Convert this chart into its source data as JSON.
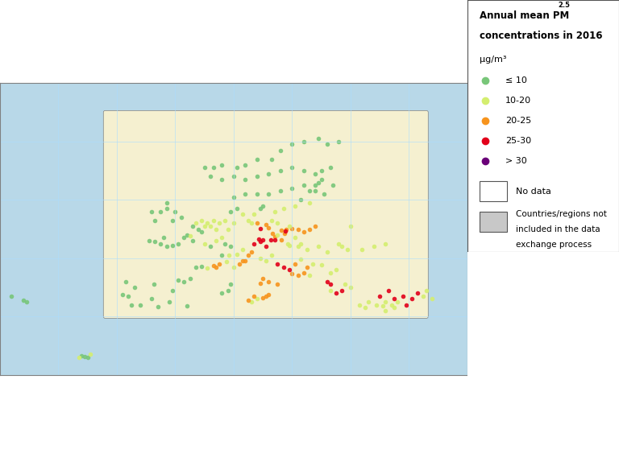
{
  "title": "Annual mean PM₂.₅\nconcentrations in 2016",
  "title_line1": "Annual mean PM",
  "title_pm_sub": "2.5",
  "title_line2": "concentrations in 2016",
  "unit": "μg/m³",
  "legend_items": [
    {
      "label": "≤ 10",
      "color": "#78c679"
    },
    {
      "label": "10-20",
      "color": "#d4ee6f"
    },
    {
      "label": "20-25",
      "color": "#f7941d"
    },
    {
      "label": "25-30",
      "color": "#e2001a"
    },
    {
      "label": "> 30",
      "color": "#6a0078"
    }
  ],
  "ocean_color": "#b8d8e8",
  "land_no_data_color": "#f5f0d0",
  "land_excluded_color": "#c8c8c8",
  "border_color": "#808080",
  "grid_color": "#aaddff",
  "inset_border_color": "#333333",
  "background_color": "#ffffff",
  "map_background": "#b8d8e8",
  "pm_stations": [
    {
      "lon": 14.5,
      "lat": 50.1,
      "cat": 4
    },
    {
      "lon": 16.6,
      "lat": 49.2,
      "cat": 3
    },
    {
      "lon": 17.0,
      "lat": 48.7,
      "cat": 3
    },
    {
      "lon": 18.2,
      "lat": 49.8,
      "cat": 3
    },
    {
      "lon": 19.0,
      "lat": 50.0,
      "cat": 3
    },
    {
      "lon": 20.0,
      "lat": 50.1,
      "cat": 3
    },
    {
      "lon": 21.0,
      "lat": 50.0,
      "cat": 3
    },
    {
      "lon": 14.0,
      "lat": 51.0,
      "cat": 3
    },
    {
      "lon": 15.5,
      "lat": 50.7,
      "cat": 3
    },
    {
      "lon": 16.0,
      "lat": 50.2,
      "cat": 3
    },
    {
      "lon": 18.7,
      "lat": 49.3,
      "cat": 3
    },
    {
      "lon": 17.5,
      "lat": 49.0,
      "cat": 2
    },
    {
      "lon": 18.9,
      "lat": 49.7,
      "cat": 4
    },
    {
      "lon": 14.3,
      "lat": 48.3,
      "cat": 4
    },
    {
      "lon": 15.0,
      "lat": 48.1,
      "cat": 4
    },
    {
      "lon": 16.4,
      "lat": 48.2,
      "cat": 4
    },
    {
      "lon": 17.1,
      "lat": 48.1,
      "cat": 4
    },
    {
      "lon": 18.1,
      "lat": 48.2,
      "cat": 3
    },
    {
      "lon": 19.2,
      "lat": 47.5,
      "cat": 2
    },
    {
      "lon": 19.5,
      "lat": 47.2,
      "cat": 2
    },
    {
      "lon": 21.0,
      "lat": 47.0,
      "cat": 2
    },
    {
      "lon": 21.5,
      "lat": 47.5,
      "cat": 2
    },
    {
      "lon": 20.5,
      "lat": 48.5,
      "cat": 2
    },
    {
      "lon": 22.0,
      "lat": 49.5,
      "cat": 3
    },
    {
      "lon": 23.0,
      "lat": 50.0,
      "cat": 3
    },
    {
      "lon": 24.0,
      "lat": 50.5,
      "cat": 3
    },
    {
      "lon": 14.5,
      "lat": 47.8,
      "cat": 4
    },
    {
      "lon": 13.5,
      "lat": 47.5,
      "cat": 4
    },
    {
      "lon": 15.5,
      "lat": 47.0,
      "cat": 4
    },
    {
      "lon": 13.0,
      "lat": 46.0,
      "cat": 3
    },
    {
      "lon": 12.0,
      "lat": 44.5,
      "cat": 3
    },
    {
      "lon": 11.0,
      "lat": 44.0,
      "cat": 3
    },
    {
      "lon": 12.5,
      "lat": 45.5,
      "cat": 3
    },
    {
      "lon": 11.5,
      "lat": 46.5,
      "cat": 2
    },
    {
      "lon": 10.5,
      "lat": 45.7,
      "cat": 2
    },
    {
      "lon": 8.0,
      "lat": 45.5,
      "cat": 1
    },
    {
      "lon": 7.5,
      "lat": 44.0,
      "cat": 3
    },
    {
      "lon": 7.0,
      "lat": 43.5,
      "cat": 3
    },
    {
      "lon": 6.5,
      "lat": 43.7,
      "cat": 3
    },
    {
      "lon": 5.5,
      "lat": 43.3,
      "cat": 2
    },
    {
      "lon": 4.5,
      "lat": 43.6,
      "cat": 1
    },
    {
      "lon": 3.5,
      "lat": 43.4,
      "cat": 1
    },
    {
      "lon": 2.5,
      "lat": 41.5,
      "cat": 1
    },
    {
      "lon": 1.5,
      "lat": 41.0,
      "cat": 1
    },
    {
      "lon": 0.5,
      "lat": 41.3,
      "cat": 1
    },
    {
      "lon": -0.5,
      "lat": 39.5,
      "cat": 1
    },
    {
      "lon": -1.0,
      "lat": 37.5,
      "cat": 1
    },
    {
      "lon": -3.7,
      "lat": 40.5,
      "cat": 1
    },
    {
      "lon": -4.0,
      "lat": 38.0,
      "cat": 1
    },
    {
      "lon": -6.0,
      "lat": 37.0,
      "cat": 1
    },
    {
      "lon": -8.0,
      "lat": 38.5,
      "cat": 1
    },
    {
      "lon": -9.0,
      "lat": 38.7,
      "cat": 1
    },
    {
      "lon": -8.5,
      "lat": 41.0,
      "cat": 1
    },
    {
      "lon": -7.0,
      "lat": 40.0,
      "cat": 1
    },
    {
      "lon": -7.5,
      "lat": 37.0,
      "cat": 1
    },
    {
      "lon": -3.0,
      "lat": 36.7,
      "cat": 1
    },
    {
      "lon": 2.0,
      "lat": 36.8,
      "cat": 1
    },
    {
      "lon": 13.0,
      "lat": 37.5,
      "cat": 2
    },
    {
      "lon": 14.0,
      "lat": 38.0,
      "cat": 2
    },
    {
      "lon": 15.0,
      "lat": 38.2,
      "cat": 3
    },
    {
      "lon": 15.5,
      "lat": 38.5,
      "cat": 3
    },
    {
      "lon": 16.0,
      "lat": 38.8,
      "cat": 3
    },
    {
      "lon": 13.5,
      "lat": 38.5,
      "cat": 3
    },
    {
      "lon": 12.5,
      "lat": 37.8,
      "cat": 3
    },
    {
      "lon": 11.5,
      "lat": 44.5,
      "cat": 3
    },
    {
      "lon": 10.0,
      "lat": 43.5,
      "cat": 2
    },
    {
      "lon": 8.8,
      "lat": 44.4,
      "cat": 2
    },
    {
      "lon": 9.2,
      "lat": 45.5,
      "cat": 2
    },
    {
      "lon": 8.5,
      "lat": 47.5,
      "cat": 1
    },
    {
      "lon": 9.5,
      "lat": 47.0,
      "cat": 1
    },
    {
      "lon": 7.0,
      "lat": 48.0,
      "cat": 2
    },
    {
      "lon": 6.0,
      "lat": 47.0,
      "cat": 1
    },
    {
      "lon": 5.0,
      "lat": 47.5,
      "cat": 2
    },
    {
      "lon": 4.0,
      "lat": 50.0,
      "cat": 1
    },
    {
      "lon": 3.0,
      "lat": 50.5,
      "cat": 1
    },
    {
      "lon": 2.0,
      "lat": 49.0,
      "cat": 1
    },
    {
      "lon": 1.5,
      "lat": 48.5,
      "cat": 1
    },
    {
      "lon": 0.5,
      "lat": 47.5,
      "cat": 1
    },
    {
      "lon": -0.5,
      "lat": 47.2,
      "cat": 1
    },
    {
      "lon": -1.5,
      "lat": 47.0,
      "cat": 1
    },
    {
      "lon": -2.5,
      "lat": 47.5,
      "cat": 1
    },
    {
      "lon": -3.5,
      "lat": 47.8,
      "cat": 1
    },
    {
      "lon": -4.5,
      "lat": 48.0,
      "cat": 1
    },
    {
      "lon": -2.0,
      "lat": 48.5,
      "cat": 1
    },
    {
      "lon": 3.5,
      "lat": 51.0,
      "cat": 2
    },
    {
      "lon": 4.5,
      "lat": 51.5,
      "cat": 2
    },
    {
      "lon": 5.5,
      "lat": 51.0,
      "cat": 2
    },
    {
      "lon": 6.5,
      "lat": 51.5,
      "cat": 2
    },
    {
      "lon": 7.5,
      "lat": 51.0,
      "cat": 2
    },
    {
      "lon": 8.5,
      "lat": 51.5,
      "cat": 2
    },
    {
      "lon": 9.5,
      "lat": 53.0,
      "cat": 1
    },
    {
      "lon": 10.5,
      "lat": 53.5,
      "cat": 1
    },
    {
      "lon": 11.5,
      "lat": 52.5,
      "cat": 2
    },
    {
      "lon": 12.5,
      "lat": 51.5,
      "cat": 2
    },
    {
      "lon": 13.5,
      "lat": 52.5,
      "cat": 2
    },
    {
      "lon": 13.0,
      "lat": 51.0,
      "cat": 2
    },
    {
      "lon": 10.0,
      "lat": 51.0,
      "cat": 2
    },
    {
      "lon": 9.0,
      "lat": 50.0,
      "cat": 2
    },
    {
      "lon": 8.0,
      "lat": 48.5,
      "cat": 2
    },
    {
      "lon": 7.0,
      "lat": 50.0,
      "cat": 2
    },
    {
      "lon": 6.0,
      "lat": 50.5,
      "cat": 2
    },
    {
      "lon": 5.0,
      "lat": 50.5,
      "cat": 2
    },
    {
      "lon": 4.5,
      "lat": 49.5,
      "cat": 1
    },
    {
      "lon": 3.0,
      "lat": 48.0,
      "cat": 1
    },
    {
      "lon": 2.5,
      "lat": 48.8,
      "cat": 2
    },
    {
      "lon": -1.5,
      "lat": 53.5,
      "cat": 1
    },
    {
      "lon": -2.5,
      "lat": 53.0,
      "cat": 1
    },
    {
      "lon": -3.5,
      "lat": 51.5,
      "cat": 1
    },
    {
      "lon": -4.0,
      "lat": 53.0,
      "cat": 1
    },
    {
      "lon": -0.5,
      "lat": 51.5,
      "cat": 1
    },
    {
      "lon": 1.0,
      "lat": 52.0,
      "cat": 1
    },
    {
      "lon": -1.5,
      "lat": 54.5,
      "cat": 1
    },
    {
      "lon": 0.0,
      "lat": 53.0,
      "cat": 1
    },
    {
      "lon": 10.0,
      "lat": 55.5,
      "cat": 1
    },
    {
      "lon": 12.0,
      "lat": 56.0,
      "cat": 1
    },
    {
      "lon": 14.0,
      "lat": 56.0,
      "cat": 1
    },
    {
      "lon": 16.0,
      "lat": 56.0,
      "cat": 1
    },
    {
      "lon": 18.0,
      "lat": 56.5,
      "cat": 1
    },
    {
      "lon": 20.0,
      "lat": 57.0,
      "cat": 1
    },
    {
      "lon": 22.0,
      "lat": 57.5,
      "cat": 1
    },
    {
      "lon": 24.0,
      "lat": 57.5,
      "cat": 1
    },
    {
      "lon": 25.0,
      "lat": 58.5,
      "cat": 1
    },
    {
      "lon": 24.0,
      "lat": 59.5,
      "cat": 1
    },
    {
      "lon": 22.0,
      "lat": 60.0,
      "cat": 1
    },
    {
      "lon": 20.0,
      "lat": 60.5,
      "cat": 1
    },
    {
      "lon": 18.0,
      "lat": 60.0,
      "cat": 1
    },
    {
      "lon": 16.0,
      "lat": 59.5,
      "cat": 1
    },
    {
      "lon": 14.0,
      "lat": 59.0,
      "cat": 1
    },
    {
      "lon": 12.0,
      "lat": 58.5,
      "cat": 1
    },
    {
      "lon": 10.0,
      "lat": 59.0,
      "cat": 1
    },
    {
      "lon": 8.0,
      "lat": 58.5,
      "cat": 1
    },
    {
      "lon": 6.0,
      "lat": 59.0,
      "cat": 1
    },
    {
      "lon": 5.0,
      "lat": 60.5,
      "cat": 1
    },
    {
      "lon": 6.5,
      "lat": 60.5,
      "cat": 1
    },
    {
      "lon": 8.0,
      "lat": 61.0,
      "cat": 1
    },
    {
      "lon": 10.5,
      "lat": 60.5,
      "cat": 1
    },
    {
      "lon": 12.0,
      "lat": 61.0,
      "cat": 1
    },
    {
      "lon": 14.0,
      "lat": 62.0,
      "cat": 1
    },
    {
      "lon": 16.5,
      "lat": 62.0,
      "cat": 1
    },
    {
      "lon": 18.0,
      "lat": 63.5,
      "cat": 1
    },
    {
      "lon": 20.0,
      "lat": 64.5,
      "cat": 1
    },
    {
      "lon": 22.0,
      "lat": 65.0,
      "cat": 1
    },
    {
      "lon": 24.5,
      "lat": 65.5,
      "cat": 1
    },
    {
      "lon": 26.0,
      "lat": 64.5,
      "cat": 1
    },
    {
      "lon": 28.0,
      "lat": 65.0,
      "cat": 1
    },
    {
      "lon": 26.5,
      "lat": 60.5,
      "cat": 1
    },
    {
      "lon": 25.0,
      "lat": 60.0,
      "cat": 1
    },
    {
      "lon": 27.0,
      "lat": 57.5,
      "cat": 1
    },
    {
      "lon": 25.5,
      "lat": 56.0,
      "cat": 1
    },
    {
      "lon": 24.0,
      "lat": 56.5,
      "cat": 1
    },
    {
      "lon": 24.5,
      "lat": 58.0,
      "cat": 1
    },
    {
      "lon": 23.0,
      "lat": 56.5,
      "cat": 1
    },
    {
      "lon": 21.5,
      "lat": 55.0,
      "cat": 1
    },
    {
      "lon": 23.0,
      "lat": 54.5,
      "cat": 2
    },
    {
      "lon": 20.5,
      "lat": 54.0,
      "cat": 2
    },
    {
      "lon": 18.5,
      "lat": 53.5,
      "cat": 2
    },
    {
      "lon": 17.0,
      "lat": 53.0,
      "cat": 2
    },
    {
      "lon": 16.5,
      "lat": 51.5,
      "cat": 2
    },
    {
      "lon": 17.5,
      "lat": 51.0,
      "cat": 2
    },
    {
      "lon": 19.5,
      "lat": 50.5,
      "cat": 2
    },
    {
      "lon": 14.5,
      "lat": 53.5,
      "cat": 1
    },
    {
      "lon": 15.0,
      "lat": 54.0,
      "cat": 1
    },
    {
      "lon": 22.5,
      "lat": 46.5,
      "cat": 2
    },
    {
      "lon": 24.5,
      "lat": 47.0,
      "cat": 2
    },
    {
      "lon": 26.0,
      "lat": 46.0,
      "cat": 2
    },
    {
      "lon": 28.0,
      "lat": 47.5,
      "cat": 2
    },
    {
      "lon": 29.5,
      "lat": 46.5,
      "cat": 2
    },
    {
      "lon": 23.5,
      "lat": 44.0,
      "cat": 2
    },
    {
      "lon": 25.0,
      "lat": 43.8,
      "cat": 2
    },
    {
      "lon": 26.5,
      "lat": 42.5,
      "cat": 2
    },
    {
      "lon": 27.5,
      "lat": 43.0,
      "cat": 2
    },
    {
      "lon": 23.0,
      "lat": 42.0,
      "cat": 2
    },
    {
      "lon": 22.0,
      "lat": 42.5,
      "cat": 3
    },
    {
      "lon": 21.0,
      "lat": 42.0,
      "cat": 3
    },
    {
      "lon": 20.0,
      "lat": 42.3,
      "cat": 3
    },
    {
      "lon": 19.5,
      "lat": 43.0,
      "cat": 4
    },
    {
      "lon": 18.5,
      "lat": 43.5,
      "cat": 4
    },
    {
      "lon": 17.5,
      "lat": 44.0,
      "cat": 4
    },
    {
      "lon": 16.5,
      "lat": 45.5,
      "cat": 2
    },
    {
      "lon": 15.5,
      "lat": 44.5,
      "cat": 2
    },
    {
      "lon": 14.5,
      "lat": 45.0,
      "cat": 2
    },
    {
      "lon": 21.5,
      "lat": 44.8,
      "cat": 2
    },
    {
      "lon": 20.5,
      "lat": 44.0,
      "cat": 3
    },
    {
      "lon": 22.5,
      "lat": 43.5,
      "cat": 3
    },
    {
      "lon": 28.5,
      "lat": 47.0,
      "cat": 2
    },
    {
      "lon": 30.0,
      "lat": 50.5,
      "cat": 2
    },
    {
      "lon": 32.0,
      "lat": 46.5,
      "cat": 2
    },
    {
      "lon": 34.0,
      "lat": 47.0,
      "cat": 2
    },
    {
      "lon": 36.0,
      "lat": 47.5,
      "cat": 2
    },
    {
      "lon": 26.5,
      "lat": 39.5,
      "cat": 2
    },
    {
      "lon": 27.5,
      "lat": 39.0,
      "cat": 4
    },
    {
      "lon": 28.5,
      "lat": 39.5,
      "cat": 4
    },
    {
      "lon": 29.0,
      "lat": 40.5,
      "cat": 2
    },
    {
      "lon": 30.0,
      "lat": 40.0,
      "cat": 2
    },
    {
      "lon": 31.5,
      "lat": 37.0,
      "cat": 2
    },
    {
      "lon": 33.0,
      "lat": 37.5,
      "cat": 2
    },
    {
      "lon": 34.5,
      "lat": 37.0,
      "cat": 2
    },
    {
      "lon": 35.5,
      "lat": 36.8,
      "cat": 2
    },
    {
      "lon": 36.0,
      "lat": 37.5,
      "cat": 2
    },
    {
      "lon": 38.0,
      "lat": 37.5,
      "cat": 2
    },
    {
      "lon": 39.5,
      "lat": 37.0,
      "cat": 4
    },
    {
      "lon": 40.5,
      "lat": 38.0,
      "cat": 4
    },
    {
      "lon": 41.5,
      "lat": 39.0,
      "cat": 4
    },
    {
      "lon": 42.5,
      "lat": 38.5,
      "cat": 2
    },
    {
      "lon": 43.0,
      "lat": 39.5,
      "cat": 2
    },
    {
      "lon": 44.0,
      "lat": 38.0,
      "cat": 2
    },
    {
      "lon": 36.0,
      "lat": 36.0,
      "cat": 2
    },
    {
      "lon": 32.5,
      "lat": 36.5,
      "cat": 2
    },
    {
      "lon": 35.0,
      "lat": 38.5,
      "cat": 4
    },
    {
      "lon": 37.5,
      "lat": 38.0,
      "cat": 4
    },
    {
      "lon": 39.0,
      "lat": 38.5,
      "cat": 4
    },
    {
      "lon": 36.5,
      "lat": 39.5,
      "cat": 4
    },
    {
      "lon": 37.0,
      "lat": 37.0,
      "cat": 2
    },
    {
      "lon": 26.0,
      "lat": 41.0,
      "cat": 4
    },
    {
      "lon": 26.5,
      "lat": 40.5,
      "cat": 4
    },
    {
      "lon": 37.5,
      "lat": 36.5,
      "cat": 2
    },
    {
      "lon": 14.5,
      "lat": 40.7,
      "cat": 3
    },
    {
      "lon": 16.0,
      "lat": 41.0,
      "cat": 3
    },
    {
      "lon": 17.5,
      "lat": 40.5,
      "cat": 3
    },
    {
      "lon": 15.0,
      "lat": 41.5,
      "cat": 3
    },
    {
      "lon": 9.0,
      "lat": 39.5,
      "cat": 1
    },
    {
      "lon": 8.0,
      "lat": 39.0,
      "cat": 1
    },
    {
      "lon": 9.5,
      "lat": 40.5,
      "cat": 1
    },
    {
      "lon": -26.0,
      "lat": 37.8,
      "cat": 1
    },
    {
      "lon": -25.5,
      "lat": 37.5,
      "cat": 1
    },
    {
      "lon": -28.0,
      "lat": 38.5,
      "cat": 1
    },
    {
      "lon": -15.0,
      "lat": 28.0,
      "cat": 1
    },
    {
      "lon": -15.5,
      "lat": 28.2,
      "cat": 1
    },
    {
      "lon": -14.5,
      "lat": 28.5,
      "cat": 2
    },
    {
      "lon": -16.0,
      "lat": 28.3,
      "cat": 1
    },
    {
      "lon": -16.5,
      "lat": 28.0,
      "cat": 2
    }
  ],
  "cat_colors": [
    "#78c679",
    "#d4ee6f",
    "#f7941d",
    "#e2001a",
    "#6a0078"
  ],
  "marker_size": 25,
  "figsize": [
    7.68,
    5.69
  ],
  "dpi": 100
}
